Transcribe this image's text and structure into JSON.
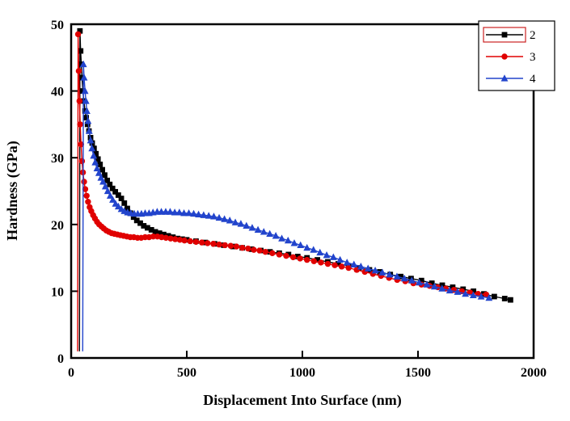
{
  "chart_data": {
    "type": "line",
    "title": "",
    "xlabel": "Displacement Into Surface (nm)",
    "ylabel": "Hardness (GPa)",
    "xlim": [
      0,
      2000
    ],
    "ylim": [
      0,
      50
    ],
    "xticks": [
      0,
      500,
      1000,
      1500,
      2000
    ],
    "yticks": [
      0,
      10,
      20,
      30,
      40,
      50
    ],
    "grid": false,
    "legend": {
      "position": "top-right",
      "border": true,
      "highlight_index": 0,
      "highlight_color": "#cc2222",
      "entries": [
        "2",
        "3",
        "4"
      ]
    },
    "series": [
      {
        "name": "2",
        "color": "#000000",
        "marker": "square",
        "markers_from": 1,
        "points": [
          [
            36,
            1
          ],
          [
            38,
            49
          ],
          [
            41,
            46
          ],
          [
            44,
            44
          ],
          [
            47,
            42
          ],
          [
            51,
            40
          ],
          [
            55,
            38.5
          ],
          [
            60,
            37
          ],
          [
            65,
            36
          ],
          [
            71,
            35
          ],
          [
            77,
            34
          ],
          [
            84,
            33
          ],
          [
            91,
            32.2
          ],
          [
            99,
            31.4
          ],
          [
            107,
            30.6
          ],
          [
            116,
            29.8
          ],
          [
            125,
            29
          ],
          [
            135,
            28.2
          ],
          [
            145,
            27.4
          ],
          [
            156,
            26.6
          ],
          [
            167,
            26
          ],
          [
            179,
            25.4
          ],
          [
            191,
            24.9
          ],
          [
            204,
            24.4
          ],
          [
            217,
            23.9
          ],
          [
            230,
            23.2
          ],
          [
            243,
            22.4
          ],
          [
            256,
            21.7
          ],
          [
            270,
            21.1
          ],
          [
            284,
            20.6
          ],
          [
            299,
            20.2
          ],
          [
            314,
            19.8
          ],
          [
            330,
            19.5
          ],
          [
            347,
            19.2
          ],
          [
            364,
            18.9
          ],
          [
            382,
            18.7
          ],
          [
            400,
            18.5
          ],
          [
            420,
            18.3
          ],
          [
            440,
            18.1
          ],
          [
            460,
            17.9
          ],
          [
            480,
            17.8
          ],
          [
            500,
            17.7
          ],
          [
            540,
            17.5
          ],
          [
            580,
            17.3
          ],
          [
            620,
            17.1
          ],
          [
            660,
            16.9
          ],
          [
            700,
            16.7
          ],
          [
            740,
            16.5
          ],
          [
            780,
            16.3
          ],
          [
            820,
            16.1
          ],
          [
            860,
            15.9
          ],
          [
            900,
            15.7
          ],
          [
            940,
            15.5
          ],
          [
            980,
            15.2
          ],
          [
            1020,
            15
          ],
          [
            1065,
            14.7
          ],
          [
            1110,
            14.4
          ],
          [
            1155,
            14.1
          ],
          [
            1200,
            13.8
          ],
          [
            1245,
            13.5
          ],
          [
            1290,
            13.2
          ],
          [
            1335,
            12.9
          ],
          [
            1380,
            12.5
          ],
          [
            1425,
            12.2
          ],
          [
            1470,
            11.9
          ],
          [
            1515,
            11.6
          ],
          [
            1560,
            11.2
          ],
          [
            1605,
            10.9
          ],
          [
            1650,
            10.6
          ],
          [
            1695,
            10.3
          ],
          [
            1740,
            10
          ],
          [
            1785,
            9.6
          ],
          [
            1830,
            9.2
          ],
          [
            1875,
            8.9
          ],
          [
            1900,
            8.7
          ]
        ]
      },
      {
        "name": "3",
        "color": "#e00000",
        "marker": "circle",
        "markers_from": 1,
        "points": [
          [
            28,
            1
          ],
          [
            30,
            48.5
          ],
          [
            33,
            43
          ],
          [
            36,
            38.5
          ],
          [
            39,
            35
          ],
          [
            43,
            32
          ],
          [
            47,
            29.5
          ],
          [
            51,
            27.8
          ],
          [
            56,
            26.4
          ],
          [
            61,
            25.3
          ],
          [
            67,
            24.3
          ],
          [
            73,
            23.4
          ],
          [
            80,
            22.6
          ],
          [
            87,
            22
          ],
          [
            95,
            21.4
          ],
          [
            103,
            20.9
          ],
          [
            112,
            20.4
          ],
          [
            121,
            20
          ],
          [
            131,
            19.7
          ],
          [
            141,
            19.4
          ],
          [
            152,
            19.1
          ],
          [
            163,
            18.9
          ],
          [
            175,
            18.7
          ],
          [
            187,
            18.6
          ],
          [
            200,
            18.5
          ],
          [
            213,
            18.4
          ],
          [
            227,
            18.3
          ],
          [
            241,
            18.2
          ],
          [
            256,
            18.1
          ],
          [
            271,
            18.1
          ],
          [
            287,
            18
          ],
          [
            303,
            18
          ],
          [
            320,
            18.1
          ],
          [
            337,
            18.1
          ],
          [
            355,
            18.2
          ],
          [
            373,
            18.2
          ],
          [
            391,
            18.1
          ],
          [
            410,
            18
          ],
          [
            430,
            17.9
          ],
          [
            450,
            17.8
          ],
          [
            470,
            17.7
          ],
          [
            490,
            17.6
          ],
          [
            515,
            17.5
          ],
          [
            540,
            17.4
          ],
          [
            565,
            17.3
          ],
          [
            590,
            17.2
          ],
          [
            615,
            17.1
          ],
          [
            640,
            17
          ],
          [
            665,
            16.9
          ],
          [
            690,
            16.8
          ],
          [
            715,
            16.7
          ],
          [
            740,
            16.5
          ],
          [
            765,
            16.4
          ],
          [
            790,
            16.2
          ],
          [
            815,
            16.1
          ],
          [
            840,
            15.9
          ],
          [
            870,
            15.7
          ],
          [
            900,
            15.5
          ],
          [
            930,
            15.3
          ],
          [
            960,
            15.1
          ],
          [
            990,
            14.9
          ],
          [
            1020,
            14.7
          ],
          [
            1050,
            14.5
          ],
          [
            1080,
            14.3
          ],
          [
            1110,
            14.1
          ],
          [
            1140,
            13.9
          ],
          [
            1170,
            13.7
          ],
          [
            1200,
            13.5
          ],
          [
            1235,
            13.2
          ],
          [
            1270,
            12.9
          ],
          [
            1305,
            12.6
          ],
          [
            1340,
            12.3
          ],
          [
            1375,
            12
          ],
          [
            1410,
            11.7
          ],
          [
            1445,
            11.5
          ],
          [
            1480,
            11.2
          ],
          [
            1515,
            11
          ],
          [
            1550,
            10.8
          ],
          [
            1585,
            10.6
          ],
          [
            1620,
            10.4
          ],
          [
            1655,
            10.2
          ],
          [
            1690,
            10
          ],
          [
            1725,
            9.8
          ],
          [
            1760,
            9.6
          ],
          [
            1795,
            9.5
          ]
        ]
      },
      {
        "name": "4",
        "color": "#2244cc",
        "marker": "triangle",
        "markers_from": 1,
        "points": [
          [
            50,
            1
          ],
          [
            53,
            44
          ],
          [
            56,
            42
          ],
          [
            60,
            40
          ],
          [
            64,
            38.5
          ],
          [
            68,
            37
          ],
          [
            73,
            35.5
          ],
          [
            78,
            34
          ],
          [
            84,
            32.6
          ],
          [
            90,
            31.4
          ],
          [
            97,
            30.3
          ],
          [
            104,
            29.3
          ],
          [
            112,
            28.4
          ],
          [
            120,
            27.7
          ],
          [
            129,
            27
          ],
          [
            138,
            26.4
          ],
          [
            148,
            25.7
          ],
          [
            158,
            25
          ],
          [
            169,
            24.3
          ],
          [
            180,
            23.7
          ],
          [
            192,
            23.1
          ],
          [
            204,
            22.7
          ],
          [
            217,
            22.3
          ],
          [
            230,
            22
          ],
          [
            244,
            21.8
          ],
          [
            258,
            21.7
          ],
          [
            273,
            21.6
          ],
          [
            288,
            21.6
          ],
          [
            304,
            21.6
          ],
          [
            320,
            21.7
          ],
          [
            337,
            21.7
          ],
          [
            354,
            21.8
          ],
          [
            372,
            21.9
          ],
          [
            390,
            21.9
          ],
          [
            409,
            21.9
          ],
          [
            428,
            21.9
          ],
          [
            448,
            21.8
          ],
          [
            468,
            21.8
          ],
          [
            488,
            21.7
          ],
          [
            509,
            21.7
          ],
          [
            530,
            21.6
          ],
          [
            551,
            21.5
          ],
          [
            573,
            21.4
          ],
          [
            595,
            21.3
          ],
          [
            617,
            21.2
          ],
          [
            640,
            21
          ],
          [
            663,
            20.8
          ],
          [
            686,
            20.6
          ],
          [
            710,
            20.3
          ],
          [
            734,
            20.1
          ],
          [
            758,
            19.8
          ],
          [
            783,
            19.5
          ],
          [
            808,
            19.2
          ],
          [
            833,
            18.9
          ],
          [
            859,
            18.6
          ],
          [
            885,
            18.3
          ],
          [
            911,
            17.9
          ],
          [
            938,
            17.6
          ],
          [
            965,
            17.2
          ],
          [
            992,
            16.9
          ],
          [
            1020,
            16.5
          ],
          [
            1048,
            16.2
          ],
          [
            1076,
            15.8
          ],
          [
            1105,
            15.4
          ],
          [
            1134,
            15.1
          ],
          [
            1163,
            14.7
          ],
          [
            1193,
            14.3
          ],
          [
            1223,
            14
          ],
          [
            1253,
            13.7
          ],
          [
            1284,
            13.4
          ],
          [
            1315,
            13.1
          ],
          [
            1346,
            12.8
          ],
          [
            1377,
            12.5
          ],
          [
            1409,
            12.2
          ],
          [
            1441,
            11.9
          ],
          [
            1473,
            11.6
          ],
          [
            1505,
            11.3
          ],
          [
            1538,
            11
          ],
          [
            1571,
            10.7
          ],
          [
            1604,
            10.4
          ],
          [
            1637,
            10.1
          ],
          [
            1671,
            9.9
          ],
          [
            1705,
            9.6
          ],
          [
            1739,
            9.4
          ],
          [
            1773,
            9.2
          ],
          [
            1807,
            9
          ]
        ]
      }
    ]
  }
}
